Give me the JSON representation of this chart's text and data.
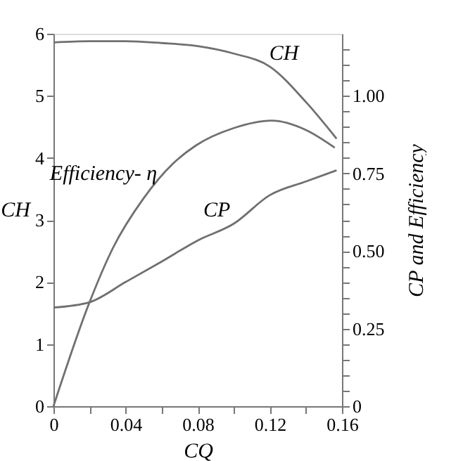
{
  "chart_data": {
    "type": "line",
    "xlabel": "CQ",
    "ylabel": "CH",
    "y2label": "CP and Efficiency",
    "xlim": [
      0,
      0.16
    ],
    "ylim": [
      0,
      6
    ],
    "y2lim": [
      0,
      1.2
    ],
    "xticks": [
      0,
      {
        "value": 0.02,
        "label": null
      },
      0.04,
      {
        "value": 0.06,
        "label": null
      },
      0.08,
      {
        "value": 0.1,
        "label": null
      },
      0.12,
      {
        "value": 0.14,
        "label": null
      },
      0.16
    ],
    "yticks": [
      0,
      1,
      2,
      3,
      4,
      5,
      6
    ],
    "y2ticks": [
      0,
      {
        "value": 0.05,
        "label": null
      },
      {
        "value": 0.1,
        "label": null
      },
      {
        "value": 0.15,
        "label": null
      },
      {
        "value": 0.2,
        "label": null
      },
      0.25,
      {
        "value": 0.3,
        "label": null
      },
      {
        "value": 0.35,
        "label": null
      },
      {
        "value": 0.4,
        "label": null
      },
      {
        "value": 0.45,
        "label": null
      },
      {
        "value": 0.5,
        "label": "0.50"
      },
      {
        "value": 0.55,
        "label": null
      },
      {
        "value": 0.6,
        "label": null
      },
      {
        "value": 0.65,
        "label": null
      },
      {
        "value": 0.7,
        "label": null
      },
      0.75,
      {
        "value": 0.8,
        "label": null
      },
      {
        "value": 0.85,
        "label": null
      },
      {
        "value": 0.9,
        "label": null
      },
      {
        "value": 0.95,
        "label": null
      },
      {
        "value": 1.0,
        "label": "1.00"
      },
      {
        "value": 1.05,
        "label": null
      },
      {
        "value": 1.1,
        "label": null
      },
      {
        "value": 1.15,
        "label": null
      }
    ],
    "grid": false,
    "marker": "none",
    "line_style": "solid",
    "series": [
      {
        "name": "CH",
        "color": "#707070",
        "x": [
          0,
          0.02,
          0.04,
          0.06,
          0.08,
          0.1,
          0.12,
          0.14,
          0.157
        ],
        "values": [
          5.86,
          5.88,
          5.88,
          5.85,
          5.8,
          5.68,
          5.47,
          4.9,
          4.31
        ]
      },
      {
        "name": "CP",
        "color": "#707070",
        "axis": "y2",
        "x": [
          0,
          0.02,
          0.04,
          0.06,
          0.08,
          0.1,
          0.12,
          0.14,
          0.157
        ],
        "values": [
          0.318,
          0.335,
          0.4,
          0.466,
          0.534,
          0.588,
          0.68,
          0.724,
          0.76
        ]
      },
      {
        "name": "Efficiency- η",
        "color": "#707070",
        "axis": "y2",
        "x": [
          0,
          0.02,
          0.033,
          0.05,
          0.066,
          0.079,
          0.1,
          0.121,
          0.14,
          0.156
        ],
        "values": [
          0,
          0.335,
          0.51,
          0.67,
          0.78,
          0.84,
          0.896,
          0.92,
          0.89,
          0.833
        ]
      }
    ]
  }
}
